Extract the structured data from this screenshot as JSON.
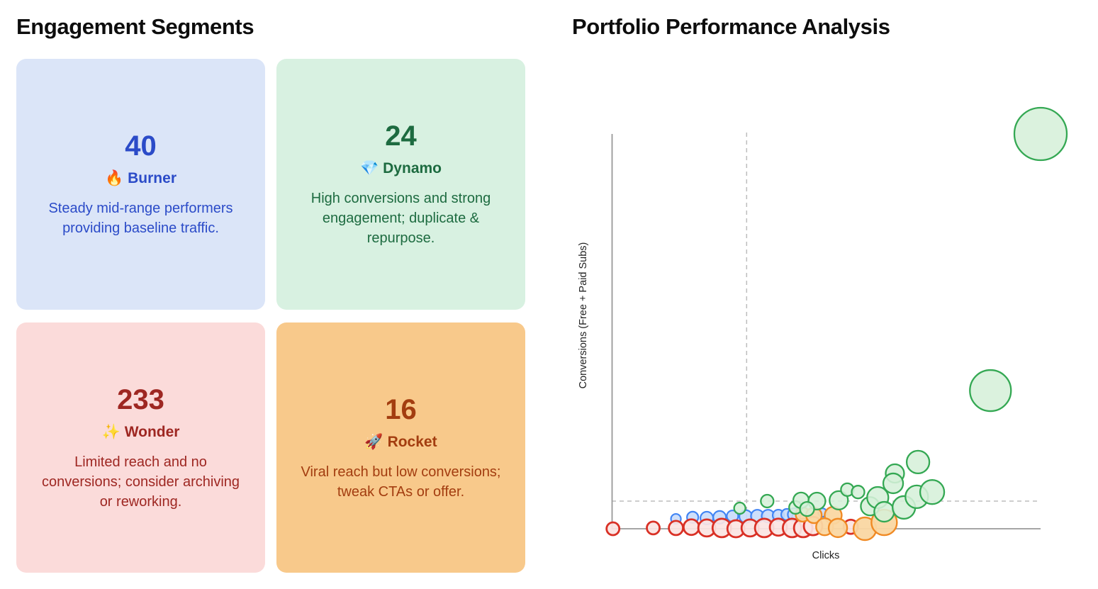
{
  "left_panel": {
    "title": "Engagement Segments",
    "cards": [
      {
        "id": "burner",
        "count": "40",
        "emoji": "🔥",
        "name": "Burner",
        "description": "Steady mid-range performers providing baseline traffic.",
        "bg": "#dbe5f8",
        "fg": "#2b4bc8"
      },
      {
        "id": "dynamo",
        "count": "24",
        "emoji": "💎",
        "name": "Dynamo",
        "description": "High conversions and strong engagement; duplicate & repurpose.",
        "bg": "#d8f1e1",
        "fg": "#1d6b40"
      },
      {
        "id": "wonder",
        "count": "233",
        "emoji": "✨",
        "name": "Wonder",
        "description": "Limited reach and no conversions; consider archiving or reworking.",
        "bg": "#fbdbda",
        "fg": "#9e2722"
      },
      {
        "id": "rocket",
        "count": "16",
        "emoji": "🚀",
        "name": "Rocket",
        "description": "Viral reach but low conversions; tweak CTAs or offer.",
        "bg": "#f8c98b",
        "fg": "#a33d10"
      }
    ]
  },
  "right_panel": {
    "title": "Portfolio Performance Analysis"
  },
  "chart_data": {
    "type": "scatter",
    "title": "Portfolio Performance Analysis",
    "xlabel": "Clicks",
    "ylabel": "Conversions (Free + Paid Subs)",
    "axis_tick_labels": "none (qualitative bubble chart, no numeric ticks shown)",
    "x_range_units": [
      0,
      100
    ],
    "y_range_units": [
      0,
      100
    ],
    "grid": false,
    "legend_position": "none",
    "thresholds": {
      "vertical_x": 31.4,
      "horizontal_y": 7.0,
      "line_style": "dashed",
      "color": "#bdbdbd"
    },
    "point_units": "x,y = percent of axis range; r = bubble radius in px",
    "series": [
      {
        "name": "Burner",
        "color": "#4285f4",
        "fill": "#c9dcfa",
        "fill_opacity": 0.9,
        "stroke_width": 2.2,
        "points": [
          {
            "x": 14.9,
            "y": 2.5,
            "r": 7
          },
          {
            "x": 18.8,
            "y": 2.9,
            "r": 8
          },
          {
            "x": 22.1,
            "y": 2.7,
            "r": 9
          },
          {
            "x": 25.1,
            "y": 2.9,
            "r": 9
          },
          {
            "x": 28.1,
            "y": 3.2,
            "r": 8
          },
          {
            "x": 31.2,
            "y": 3.1,
            "r": 9
          },
          {
            "x": 33.9,
            "y": 3.2,
            "r": 9
          },
          {
            "x": 36.4,
            "y": 3.2,
            "r": 9
          },
          {
            "x": 38.8,
            "y": 3.4,
            "r": 8
          },
          {
            "x": 40.8,
            "y": 3.6,
            "r": 8
          },
          {
            "x": 42.5,
            "y": 3.6,
            "r": 9
          },
          {
            "x": 49.1,
            "y": 4.1,
            "r": 6
          }
        ]
      },
      {
        "name": "Wonder",
        "color": "#d93025",
        "fill": "#fbe4e2",
        "fill_opacity": 0.92,
        "stroke_width": 2.8,
        "points": [
          {
            "x": 0.2,
            "y": 0,
            "r": 9
          },
          {
            "x": 9.6,
            "y": 0.2,
            "r": 9
          },
          {
            "x": 14.9,
            "y": 0.2,
            "r": 10
          },
          {
            "x": 18.5,
            "y": 0.4,
            "r": 11
          },
          {
            "x": 22.1,
            "y": 0.2,
            "r": 12
          },
          {
            "x": 25.6,
            "y": 0.2,
            "r": 13
          },
          {
            "x": 28.9,
            "y": 0,
            "r": 12
          },
          {
            "x": 32.2,
            "y": 0.2,
            "r": 12
          },
          {
            "x": 35.5,
            "y": 0.2,
            "r": 13
          },
          {
            "x": 38.8,
            "y": 0.4,
            "r": 12
          },
          {
            "x": 42,
            "y": 0.2,
            "r": 13
          },
          {
            "x": 44.6,
            "y": 0.2,
            "r": 13
          },
          {
            "x": 46.9,
            "y": 0.7,
            "r": 13
          },
          {
            "x": 55.7,
            "y": 0.5,
            "r": 10
          }
        ]
      },
      {
        "name": "Rocket",
        "color": "#f08a24",
        "fill": "#fad7a2",
        "fill_opacity": 0.95,
        "stroke_width": 2.4,
        "points": [
          {
            "x": 44.5,
            "y": 3.6,
            "r": 10
          },
          {
            "x": 47.1,
            "y": 3.4,
            "r": 11
          },
          {
            "x": 51.6,
            "y": 3.4,
            "r": 12
          },
          {
            "x": 49.6,
            "y": 0.5,
            "r": 12
          },
          {
            "x": 52.7,
            "y": 0.2,
            "r": 13
          },
          {
            "x": 59,
            "y": 0,
            "r": 16
          },
          {
            "x": 63.5,
            "y": 1.6,
            "r": 18
          }
        ]
      },
      {
        "name": "Dynamo",
        "color": "#34a853",
        "fill": "#d6f0da",
        "fill_opacity": 0.88,
        "stroke_width": 2.3,
        "points": [
          {
            "x": 29.8,
            "y": 5.2,
            "r": 8
          },
          {
            "x": 36.2,
            "y": 7,
            "r": 9
          },
          {
            "x": 42.8,
            "y": 5.4,
            "r": 9
          },
          {
            "x": 44.1,
            "y": 7.2,
            "r": 11
          },
          {
            "x": 47.8,
            "y": 7,
            "r": 12
          },
          {
            "x": 45.5,
            "y": 5,
            "r": 10
          },
          {
            "x": 52.9,
            "y": 7.2,
            "r": 13
          },
          {
            "x": 54.9,
            "y": 9.9,
            "r": 9
          },
          {
            "x": 57.4,
            "y": 9.3,
            "r": 9
          },
          {
            "x": 60.2,
            "y": 5.7,
            "r": 13
          },
          {
            "x": 62,
            "y": 7.9,
            "r": 15
          },
          {
            "x": 63.5,
            "y": 4.3,
            "r": 14
          },
          {
            "x": 66,
            "y": 14,
            "r": 13
          },
          {
            "x": 65.6,
            "y": 11.5,
            "r": 14
          },
          {
            "x": 68.1,
            "y": 5.4,
            "r": 16
          },
          {
            "x": 71.1,
            "y": 8.1,
            "r": 16
          },
          {
            "x": 71.4,
            "y": 16.9,
            "r": 16
          },
          {
            "x": 74.7,
            "y": 9.3,
            "r": 17
          },
          {
            "x": 88.3,
            "y": 35,
            "r": 29
          },
          {
            "x": 100,
            "y": 100,
            "r": 37
          }
        ]
      }
    ]
  }
}
